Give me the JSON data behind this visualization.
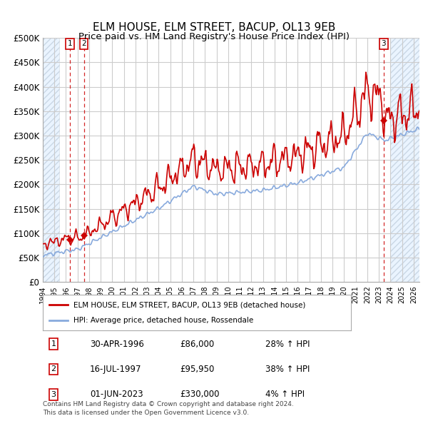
{
  "title": "ELM HOUSE, ELM STREET, BACUP, OL13 9EB",
  "subtitle": "Price paid vs. HM Land Registry's House Price Index (HPI)",
  "title_fontsize": 11,
  "subtitle_fontsize": 10,
  "ylim": [
    0,
    500000
  ],
  "yticks": [
    0,
    50000,
    100000,
    150000,
    200000,
    250000,
    300000,
    350000,
    400000,
    450000,
    500000
  ],
  "ytick_labels": [
    "£0",
    "£50K",
    "£100K",
    "£150K",
    "£200K",
    "£250K",
    "£300K",
    "£350K",
    "£400K",
    "£450K",
    "£500K"
  ],
  "xlim_start": 1994.0,
  "xlim_end": 2026.5,
  "background_color": "#ffffff",
  "grid_color": "#cccccc",
  "shade_color": "#ddeeff",
  "hatch_left_end": 1995.4,
  "hatch_right_start": 2024.0,
  "sale_events": [
    {
      "date": "30-APR-1996",
      "year": 1996.33,
      "price": 86000,
      "label": "1",
      "hpi_pct": "28% ↑ HPI"
    },
    {
      "date": "16-JUL-1997",
      "year": 1997.54,
      "price": 95950,
      "label": "2",
      "hpi_pct": "38% ↑ HPI"
    },
    {
      "date": "01-JUN-2023",
      "year": 2023.42,
      "price": 330000,
      "label": "3",
      "hpi_pct": "4% ↑ HPI"
    }
  ],
  "legend_label_red": "ELM HOUSE, ELM STREET, BACUP, OL13 9EB (detached house)",
  "legend_label_blue": "HPI: Average price, detached house, Rossendale",
  "footer_line1": "Contains HM Land Registry data © Crown copyright and database right 2024.",
  "footer_line2": "This data is licensed under the Open Government Licence v3.0.",
  "red_color": "#cc0000",
  "blue_color": "#88aadd",
  "box_color": "#cc0000",
  "row_data": [
    [
      "1",
      "30-APR-1996",
      "£86,000",
      "28% ↑ HPI"
    ],
    [
      "2",
      "16-JUL-1997",
      "£95,950",
      "38% ↑ HPI"
    ],
    [
      "3",
      "01-JUN-2023",
      "£330,000",
      "4% ↑ HPI"
    ]
  ]
}
